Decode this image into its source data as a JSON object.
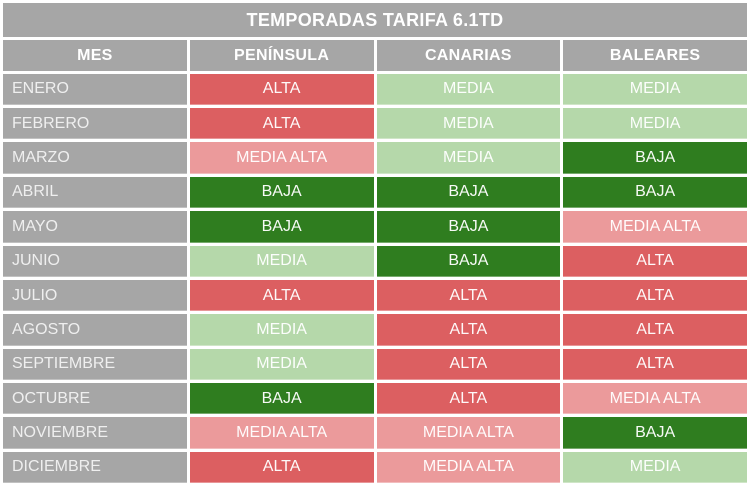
{
  "chart_data": {
    "type": "table",
    "title": "TEMPORADAS TARIFA 6.1TD",
    "columns": [
      "MES",
      "PENÍNSULA",
      "CANARIAS",
      "BALEARES"
    ],
    "rows": [
      [
        "ENERO",
        "ALTA",
        "MEDIA",
        "MEDIA"
      ],
      [
        "FEBRERO",
        "ALTA",
        "MEDIA",
        "MEDIA"
      ],
      [
        "MARZO",
        "MEDIA ALTA",
        "MEDIA",
        "BAJA"
      ],
      [
        "ABRIL",
        "BAJA",
        "BAJA",
        "BAJA"
      ],
      [
        "MAYO",
        "BAJA",
        "BAJA",
        "MEDIA ALTA"
      ],
      [
        "JUNIO",
        "MEDIA",
        "BAJA",
        "ALTA"
      ],
      [
        "JULIO",
        "ALTA",
        "ALTA",
        "ALTA"
      ],
      [
        "AGOSTO",
        "MEDIA",
        "ALTA",
        "ALTA"
      ],
      [
        "SEPTIEMBRE",
        "MEDIA",
        "ALTA",
        "ALTA"
      ],
      [
        "OCTUBRE",
        "BAJA",
        "ALTA",
        "MEDIA ALTA"
      ],
      [
        "NOVIEMBRE",
        "MEDIA ALTA",
        "MEDIA ALTA",
        "BAJA"
      ],
      [
        "DICIEMBRE",
        "ALTA",
        "MEDIA ALTA",
        "MEDIA"
      ]
    ],
    "layout_hints": {
      "legend_position": "none",
      "grid": "white 3px gaps between cells",
      "value_color_coding": true
    }
  },
  "colors": {
    "header_bg": "#A6A6A6",
    "alta": "#DC5F61",
    "media_alta": "#EB9A9B",
    "media": "#B5D8AA",
    "baja": "#2F7D1F",
    "text_color": "#FFFFFF",
    "page_bg": "#FFFFFF"
  }
}
